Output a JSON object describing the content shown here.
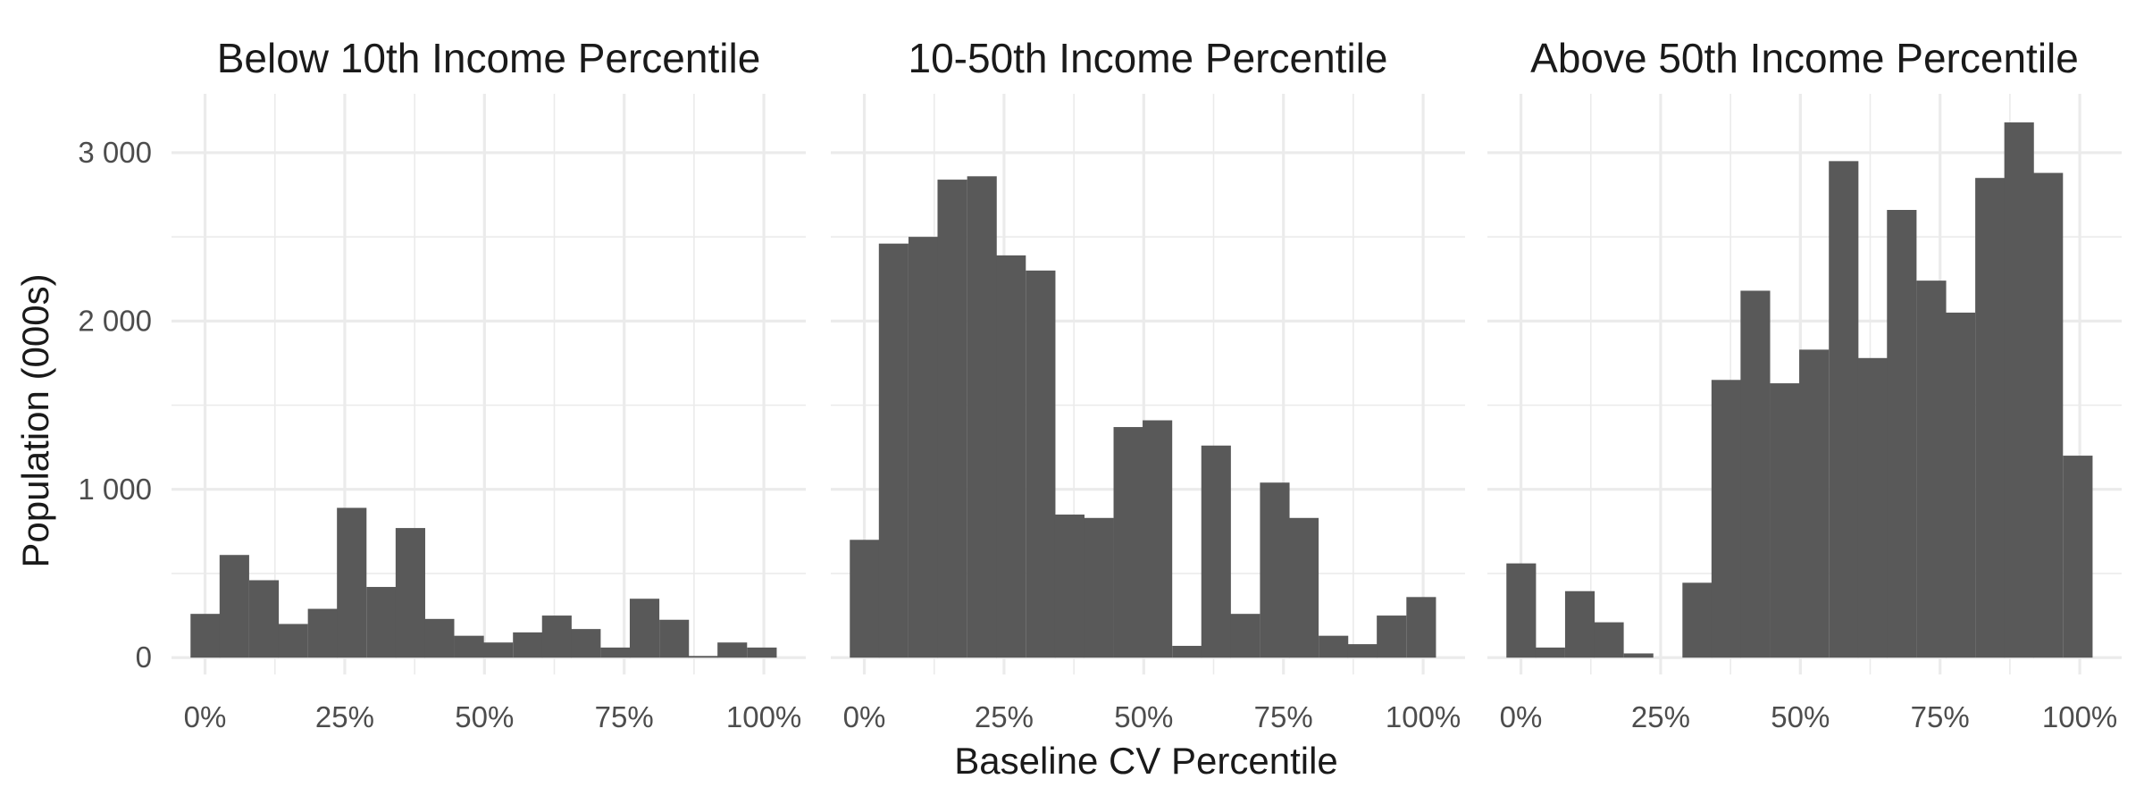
{
  "chart_data": {
    "type": "bar",
    "layout": "small-multiples, 3 panels side by side, shared y-axis",
    "xlabel": "Baseline CV Percentile",
    "ylabel": "Population (000s)",
    "x_ticks": [
      0,
      25,
      50,
      75,
      100
    ],
    "x_tick_labels": [
      "0%",
      "25%",
      "50%",
      "75%",
      "100%"
    ],
    "y_ticks": [
      0,
      1000,
      2000,
      3000
    ],
    "y_tick_labels": [
      "0",
      "1 000",
      "2 000",
      "3 000"
    ],
    "xlim": [
      -6,
      107.5
    ],
    "ylim": [
      -100,
      3350
    ],
    "bin_width": 5.2,
    "bar_color": "#595959",
    "grid": true,
    "legend": "none",
    "panels": [
      {
        "title": "Below 10th Income Percentile",
        "x": [
          0,
          5.2,
          10.5,
          15.7,
          21,
          26.2,
          31.5,
          36.7,
          41.9,
          47.2,
          52.4,
          57.7,
          62.9,
          68.1,
          73.4,
          78.6,
          83.9,
          89.1,
          94.3,
          99.6
        ],
        "values": [
          260,
          610,
          460,
          200,
          290,
          890,
          420,
          770,
          230,
          130,
          90,
          150,
          250,
          170,
          60,
          350,
          225,
          10,
          90,
          60
        ]
      },
      {
        "title": "10-50th Income Percentile",
        "x": [
          0,
          5.2,
          10.5,
          15.7,
          21,
          26.2,
          31.5,
          36.7,
          41.9,
          47.2,
          52.4,
          57.7,
          62.9,
          68.1,
          73.4,
          78.6,
          83.9,
          89.1,
          94.3,
          99.6
        ],
        "values": [
          700,
          2460,
          2500,
          2840,
          2860,
          2390,
          2300,
          850,
          830,
          1370,
          1410,
          70,
          1260,
          260,
          1040,
          830,
          130,
          80,
          250,
          360
        ]
      },
      {
        "title": "Above 50th Income Percentile",
        "x": [
          0,
          5.2,
          10.5,
          15.7,
          21,
          26.2,
          31.5,
          36.7,
          41.9,
          47.2,
          52.4,
          57.7,
          62.9,
          68.1,
          73.4,
          78.6,
          83.9,
          89.1,
          94.3,
          99.6
        ],
        "values": [
          560,
          60,
          395,
          210,
          25,
          0,
          445,
          1650,
          2180,
          1630,
          1830,
          2950,
          1780,
          2660,
          2240,
          2050,
          2850,
          3180,
          2880,
          1200
        ]
      }
    ]
  }
}
